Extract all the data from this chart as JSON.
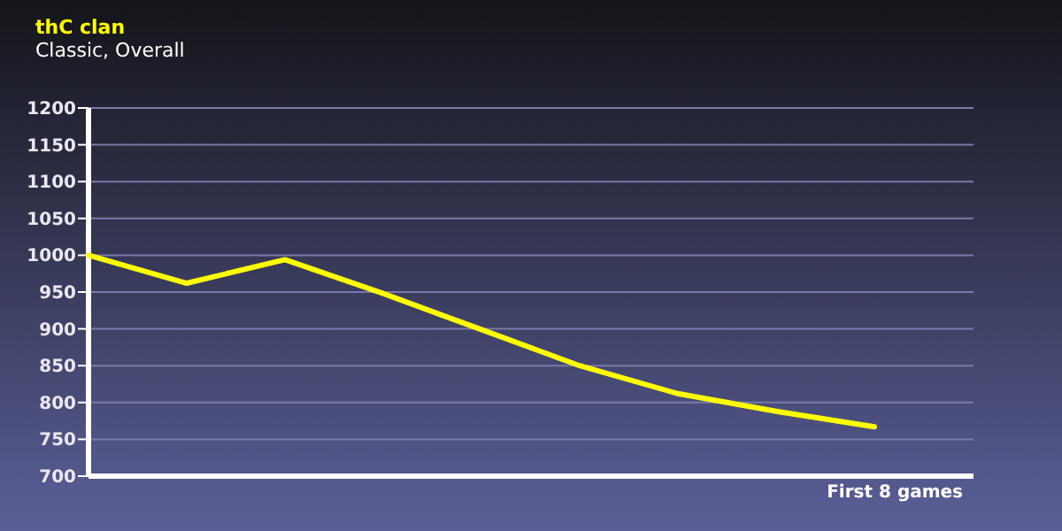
{
  "chart_data": {
    "type": "line",
    "title": "thC clan",
    "subtitle": "Classic, Overall",
    "xlabel": "First 8 games",
    "categories": [
      null,
      null,
      null,
      null,
      null,
      null,
      null,
      null,
      null
    ],
    "series": [
      {
        "color": "#ffff00",
        "values": [
          1000,
          962,
          994,
          948,
          899,
          850,
          812,
          788,
          767
        ]
      }
    ],
    "ylim": [
      700,
      1200
    ],
    "yticks": [
      700,
      750,
      800,
      850,
      900,
      950,
      1000,
      1050,
      1100,
      1150,
      1200
    ],
    "grid": "y",
    "marker": "none",
    "line_style": "solid"
  }
}
